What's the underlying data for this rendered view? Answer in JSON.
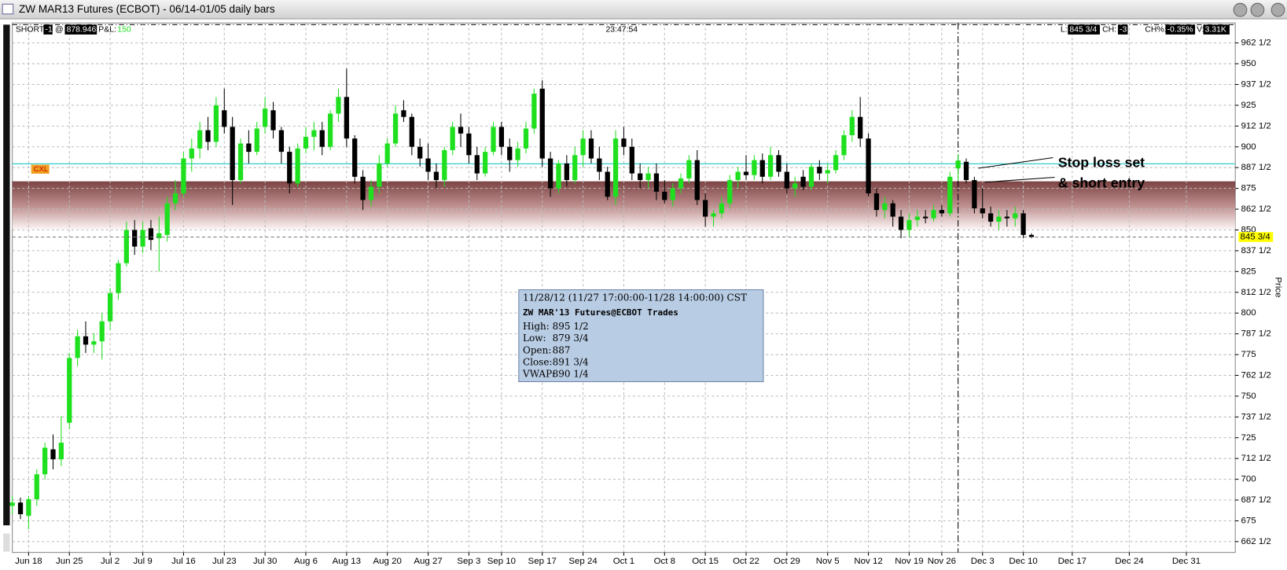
{
  "window_title": "ZW MAR13 Futures (ECBOT) - 06/14-01/05 daily bars",
  "info": {
    "position": "SHORT",
    "qty": "-1",
    "at": "@",
    "avg": "878.946",
    "pnl_label": "P&L:",
    "pnl": "150",
    "time": "23:47:54",
    "last_label": "L:",
    "change_label": "CH:",
    "change": "-3",
    "change_pct_label": "CH%:",
    "change_pct": "-0.35%",
    "volume_label": "V:",
    "volume": "3.31K"
  },
  "chart_data": {
    "type": "candlestick",
    "y_label": "Price",
    "grid": true,
    "up_color": "#1fe01f",
    "down_color": "#000000",
    "last": {
      "value": 845.75,
      "label": "845 3/4"
    },
    "order_label": "CXL",
    "stop_line": 889.75,
    "zone": [
      850.5,
      879.25
    ],
    "annotation": [
      "Stop loss set",
      "& short entry"
    ],
    "tooltip": {
      "title": "11/28/12 (11/27 17:00:00-11/28 14:00:00) CST",
      "subtitle": "ZW MAR'13 Futures@ECBOT Trades",
      "fields": [
        {
          "name": "High:",
          "value": 895.5,
          "label": "895 1/2"
        },
        {
          "name": "Low:",
          "value": 879.75,
          "label": "879 3/4"
        },
        {
          "name": "Open:",
          "value": 887
        },
        {
          "name": "Close:",
          "value": 891.75,
          "label": "891 3/4"
        },
        {
          "name": "VWAP:",
          "value": 890.25,
          "label": "890 1/4"
        }
      ]
    },
    "xlim": [
      0,
      150
    ],
    "ylim": [
      656,
      974.5
    ],
    "xticks": [
      {
        "value": 2,
        "label": "Jun 18"
      },
      {
        "value": 7,
        "label": "Jun 25"
      },
      {
        "value": 12,
        "label": "Jul 2"
      },
      {
        "value": 16,
        "label": "Jul 9"
      },
      {
        "value": 21,
        "label": "Jul 16"
      },
      {
        "value": 26,
        "label": "Jul 23"
      },
      {
        "value": 31,
        "label": "Jul 30"
      },
      {
        "value": 36,
        "label": "Aug 6"
      },
      {
        "value": 41,
        "label": "Aug 13"
      },
      {
        "value": 46,
        "label": "Aug 20"
      },
      {
        "value": 51,
        "label": "Aug 27"
      },
      {
        "value": 56,
        "label": "Sep 3"
      },
      {
        "value": 60,
        "label": "Sep 10"
      },
      {
        "value": 65,
        "label": "Sep 17"
      },
      {
        "value": 70,
        "label": "Sep 24"
      },
      {
        "value": 75,
        "label": "Oct 1"
      },
      {
        "value": 80,
        "label": "Oct 8"
      },
      {
        "value": 85,
        "label": "Oct 15"
      },
      {
        "value": 90,
        "label": "Oct 22"
      },
      {
        "value": 95,
        "label": "Oct 29"
      },
      {
        "value": 100,
        "label": "Nov 5"
      },
      {
        "value": 105,
        "label": "Nov 12"
      },
      {
        "value": 110,
        "label": "Nov 19"
      },
      {
        "value": 114,
        "label": "Nov 26"
      },
      {
        "value": 119,
        "label": "Dec 3"
      },
      {
        "value": 124,
        "label": "Dec 10"
      },
      {
        "value": 130,
        "label": "Dec 17"
      },
      {
        "value": 137,
        "label": "Dec 24"
      },
      {
        "value": 144,
        "label": "Dec 31"
      }
    ],
    "yticks": [
      {
        "value": 662.5,
        "label": "662 1/2"
      },
      675,
      {
        "value": 687.5,
        "label": "687 1/2"
      },
      700,
      {
        "value": 712.5,
        "label": "712 1/2"
      },
      725,
      {
        "value": 737.5,
        "label": "737 1/2"
      },
      750,
      {
        "value": 762.5,
        "label": "762 1/2"
      },
      775,
      {
        "value": 787.5,
        "label": "787 1/2"
      },
      800,
      {
        "value": 812.5,
        "label": "812 1/2"
      },
      825,
      {
        "value": 837.5,
        "label": "837 1/2"
      },
      850,
      {
        "value": 862.5,
        "label": "862 1/2"
      },
      875,
      {
        "value": 887.5,
        "label": "887 1/2"
      },
      900,
      {
        "value": 912.5,
        "label": "912 1/2"
      },
      925,
      {
        "value": 937.5,
        "label": "937 1/2"
      },
      950,
      {
        "value": 962.5,
        "label": "962 1/2"
      }
    ],
    "candles": [
      [
        684,
        690,
        679,
        686
      ],
      [
        686,
        689,
        676,
        679
      ],
      [
        678,
        690,
        670,
        688
      ],
      [
        688,
        706,
        684,
        703
      ],
      [
        703,
        722,
        700,
        719
      ],
      [
        718,
        727,
        706,
        712
      ],
      [
        712,
        738,
        708,
        722
      ],
      [
        734,
        776,
        730,
        773
      ],
      [
        773,
        790,
        768,
        786
      ],
      [
        786,
        795,
        776,
        781
      ],
      [
        781,
        788,
        776,
        783
      ],
      [
        783,
        800,
        772,
        795
      ],
      [
        795,
        815,
        790,
        812
      ],
      [
        812,
        832,
        808,
        830
      ],
      [
        830,
        855,
        828,
        850
      ],
      [
        850,
        856,
        835,
        840
      ],
      [
        840,
        855,
        836,
        850
      ],
      [
        851,
        856,
        838,
        844
      ],
      [
        845,
        858,
        825,
        848
      ],
      [
        847,
        870,
        843,
        866
      ],
      [
        866,
        880,
        862,
        872
      ],
      [
        872,
        897,
        870,
        893
      ],
      [
        893,
        905,
        885,
        899
      ],
      [
        899,
        915,
        893,
        910
      ],
      [
        910,
        918,
        898,
        903
      ],
      [
        903,
        930,
        900,
        925
      ],
      [
        922,
        935,
        908,
        912
      ],
      [
        912,
        918,
        865,
        880
      ],
      [
        880,
        905,
        878,
        902
      ],
      [
        902,
        910,
        890,
        897
      ],
      [
        897,
        915,
        895,
        911
      ],
      [
        912,
        930,
        908,
        923
      ],
      [
        922,
        927,
        905,
        910
      ],
      [
        910,
        912,
        890,
        897
      ],
      [
        897,
        900,
        872,
        878
      ],
      [
        878,
        902,
        876,
        899
      ],
      [
        899,
        912,
        896,
        906
      ],
      [
        906,
        915,
        898,
        910
      ],
      [
        910,
        915,
        895,
        900
      ],
      [
        900,
        922,
        898,
        920
      ],
      [
        920,
        935,
        915,
        930
      ],
      [
        930,
        947,
        900,
        905
      ],
      [
        905,
        907,
        878,
        882
      ],
      [
        882,
        886,
        862,
        868
      ],
      [
        868,
        880,
        864,
        876
      ],
      [
        876,
        895,
        872,
        890
      ],
      [
        890,
        905,
        888,
        902
      ],
      [
        902,
        925,
        900,
        920
      ],
      [
        922,
        928,
        915,
        918
      ],
      [
        918,
        920,
        895,
        900
      ],
      [
        900,
        905,
        888,
        893
      ],
      [
        893,
        902,
        880,
        885
      ],
      [
        885,
        890,
        875,
        880
      ],
      [
        880,
        900,
        876,
        898
      ],
      [
        898,
        915,
        895,
        912
      ],
      [
        912,
        920,
        900,
        908
      ],
      [
        908,
        912,
        890,
        895
      ],
      [
        895,
        900,
        880,
        884
      ],
      [
        884,
        900,
        882,
        897
      ],
      [
        897,
        915,
        895,
        912
      ],
      [
        912,
        915,
        895,
        900
      ],
      [
        900,
        905,
        885,
        892
      ],
      [
        892,
        903,
        888,
        899
      ],
      [
        899,
        915,
        896,
        911
      ],
      [
        911,
        935,
        908,
        932
      ],
      [
        935,
        940,
        888,
        893
      ],
      [
        893,
        897,
        870,
        875
      ],
      [
        875,
        892,
        872,
        890
      ],
      [
        890,
        895,
        876,
        880
      ],
      [
        880,
        900,
        878,
        895
      ],
      [
        895,
        910,
        888,
        905
      ],
      [
        905,
        910,
        890,
        893
      ],
      [
        893,
        900,
        880,
        885
      ],
      [
        885,
        888,
        868,
        870
      ],
      [
        870,
        910,
        865,
        905
      ],
      [
        905,
        912,
        895,
        900
      ],
      [
        900,
        905,
        880,
        884
      ],
      [
        884,
        890,
        875,
        880
      ],
      [
        880,
        888,
        875,
        884
      ],
      [
        884,
        890,
        868,
        873
      ],
      [
        873,
        880,
        866,
        868
      ],
      [
        868,
        878,
        864,
        875
      ],
      [
        875,
        884,
        872,
        881
      ],
      [
        881,
        895,
        878,
        892
      ],
      [
        892,
        898,
        865,
        868
      ],
      [
        868,
        872,
        852,
        858
      ],
      [
        858,
        862,
        852,
        860
      ],
      [
        860,
        870,
        857,
        866
      ],
      [
        866,
        883,
        863,
        880
      ],
      [
        880,
        888,
        875,
        885
      ],
      [
        885,
        895,
        880,
        883
      ],
      [
        883,
        895,
        880,
        892
      ],
      [
        892,
        896,
        878,
        882
      ],
      [
        882,
        900,
        880,
        895
      ],
      [
        895,
        898,
        882,
        885
      ],
      [
        885,
        890,
        872,
        875
      ],
      [
        875,
        882,
        870,
        878
      ],
      [
        882,
        886,
        874,
        876
      ],
      [
        876,
        890,
        874,
        888
      ],
      [
        888,
        892,
        880,
        884
      ],
      [
        884,
        890,
        878,
        886
      ],
      [
        886,
        898,
        884,
        895
      ],
      [
        895,
        910,
        892,
        907
      ],
      [
        907,
        922,
        903,
        918
      ],
      [
        918,
        930,
        900,
        905
      ],
      [
        905,
        908,
        870,
        872
      ],
      [
        872,
        875,
        858,
        862
      ],
      [
        862,
        870,
        857,
        866
      ],
      [
        866,
        868,
        852,
        858
      ],
      [
        858,
        862,
        845,
        850
      ],
      [
        850,
        860,
        846,
        856
      ],
      [
        856,
        862,
        852,
        858
      ],
      [
        858,
        862,
        854,
        857
      ],
      [
        857,
        865,
        855,
        862
      ],
      [
        862,
        865,
        858,
        860
      ],
      [
        860,
        885,
        858,
        882
      ],
      [
        887,
        895.5,
        879.75,
        891.75
      ],
      [
        891,
        893,
        878,
        880
      ],
      [
        880,
        882,
        860,
        863
      ],
      [
        863,
        875,
        857,
        860
      ],
      [
        860,
        864,
        852,
        855
      ],
      [
        855,
        862,
        850,
        858
      ],
      [
        858,
        862,
        852,
        857
      ],
      [
        857,
        864,
        852,
        860
      ],
      [
        860,
        862,
        845,
        847
      ],
      [
        847,
        848,
        845,
        845.75
      ]
    ]
  }
}
